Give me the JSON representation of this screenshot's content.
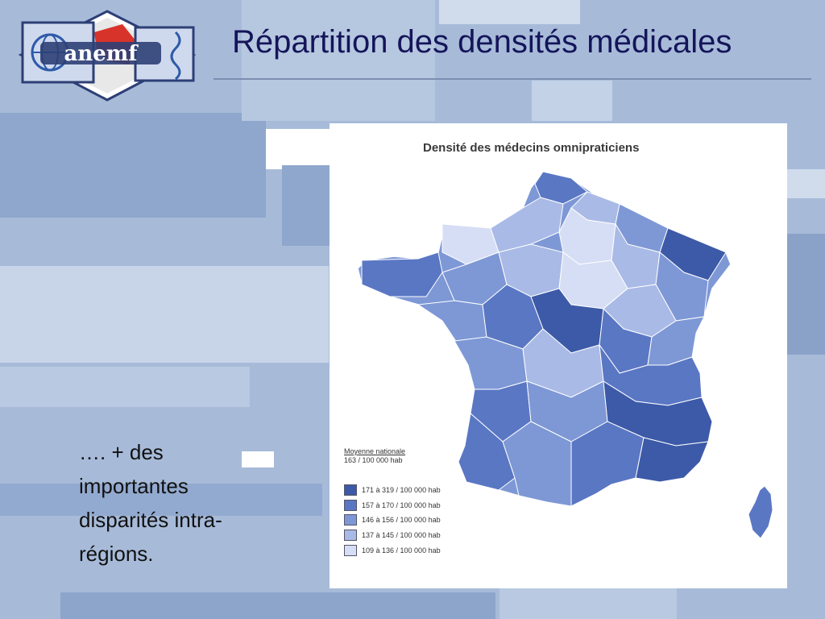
{
  "slide": {
    "title": "Répartition des densités médicales",
    "body_text": "…. + des importantes disparités intra-régions."
  },
  "logo": {
    "text": "anemf"
  },
  "map": {
    "title": "Densité des médecins omnipraticiens",
    "national_average_label": "Moyenne nationale",
    "national_average_value": "163 / 100 000 hab",
    "legend": [
      {
        "label": "171 à 319 / 100 000 hab",
        "color": "#3d5aa8"
      },
      {
        "label": "157 à 170 / 100 000 hab",
        "color": "#5a77c4"
      },
      {
        "label": "146 à 156 / 100 000 hab",
        "color": "#7e98d6"
      },
      {
        "label": "137 à 145 / 100 000 hab",
        "color": "#a9bae6"
      },
      {
        "label": "109 à 136 / 100 000 hab",
        "color": "#d6def5"
      }
    ]
  },
  "colors": {
    "title": "#15155a",
    "background": "#a9bddb"
  }
}
